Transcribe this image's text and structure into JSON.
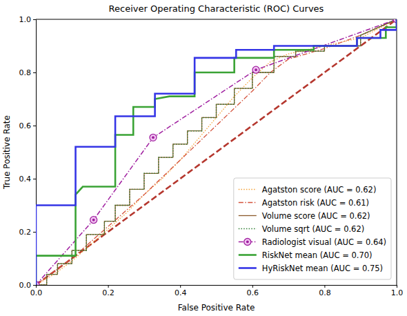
{
  "chart_data": {
    "type": "line",
    "title": "Receiver Operating Characteristic (ROC) Curves",
    "x_label": "False Positive Rate",
    "y_label": "True Positive Rate",
    "xlim": [
      0,
      1
    ],
    "ylim": [
      0,
      1
    ],
    "xticks": [
      {
        "value": 0,
        "label": "0.0"
      },
      0.2,
      0.4,
      0.6,
      0.8,
      {
        "value": 1,
        "label": "1.0"
      }
    ],
    "yticks": [
      {
        "value": 0,
        "label": "0.0"
      },
      0.2,
      0.4,
      0.6,
      0.8,
      {
        "value": 1,
        "label": "1.0"
      }
    ],
    "legend": "lower right",
    "grid": false,
    "series": [
      {
        "color": "#b5372e",
        "line_style": "dashed",
        "x": [
          0,
          1
        ],
        "values": [
          0,
          1
        ]
      },
      {
        "name": "Agatston score (AUC = 0.62)",
        "color": "#f5a033",
        "line_style": "dotted",
        "x": [
          0,
          0.05,
          0.1,
          0.15,
          0.2,
          0.25,
          0.3,
          0.35,
          0.4,
          0.45,
          0.5,
          0.55,
          0.6,
          0.65,
          0.7,
          0.8,
          0.9,
          1
        ],
        "values": [
          0,
          0.04,
          0.09,
          0.15,
          0.21,
          0.27,
          0.34,
          0.4,
          0.47,
          0.55,
          0.63,
          0.71,
          0.78,
          0.84,
          0.87,
          0.9,
          0.93,
          1
        ]
      },
      {
        "name": "Agatston risk (AUC = 0.61)",
        "color": "#d4513a",
        "line_style": "dashdot",
        "x": [
          0,
          0.1,
          0.2,
          0.3,
          0.4,
          0.5,
          0.6,
          0.65,
          0.7,
          0.8,
          0.9,
          1
        ],
        "values": [
          0,
          0.1,
          0.22,
          0.34,
          0.47,
          0.6,
          0.73,
          0.8,
          0.85,
          0.89,
          0.94,
          1
        ]
      },
      {
        "name": "Volume score (AUC = 0.62)",
        "color": "#8b5a2b",
        "line_style": "solid",
        "x": [
          0,
          0.03,
          0.03,
          0.06,
          0.06,
          0.1,
          0.1,
          0.14,
          0.14,
          0.19,
          0.19,
          0.22,
          0.22,
          0.26,
          0.26,
          0.3,
          0.3,
          0.34,
          0.34,
          0.38,
          0.38,
          0.42,
          0.42,
          0.46,
          0.46,
          0.5,
          0.5,
          0.55,
          0.55,
          0.6,
          0.6,
          0.66,
          0.66,
          0.72,
          0.72,
          0.8,
          0.8,
          0.9,
          0.9,
          1
        ],
        "values": [
          0,
          0,
          0.04,
          0.04,
          0.08,
          0.08,
          0.13,
          0.13,
          0.19,
          0.19,
          0.24,
          0.24,
          0.3,
          0.3,
          0.36,
          0.36,
          0.42,
          0.42,
          0.48,
          0.48,
          0.53,
          0.53,
          0.58,
          0.58,
          0.63,
          0.63,
          0.68,
          0.68,
          0.74,
          0.74,
          0.8,
          0.8,
          0.86,
          0.86,
          0.88,
          0.88,
          0.9,
          0.9,
          0.94,
          1
        ]
      },
      {
        "name": "Volume sqrt (AUC = 0.62)",
        "color": "#2e7d32",
        "line_style": "dotted",
        "x": [
          0,
          0.03,
          0.03,
          0.06,
          0.06,
          0.1,
          0.1,
          0.14,
          0.14,
          0.19,
          0.19,
          0.22,
          0.22,
          0.26,
          0.26,
          0.3,
          0.3,
          0.34,
          0.34,
          0.38,
          0.38,
          0.42,
          0.42,
          0.46,
          0.46,
          0.5,
          0.5,
          0.55,
          0.55,
          0.6,
          0.6,
          0.66,
          0.66,
          0.72,
          0.72,
          0.8,
          0.8,
          0.9,
          0.9,
          1
        ],
        "values": [
          0,
          0,
          0.04,
          0.04,
          0.08,
          0.08,
          0.13,
          0.13,
          0.19,
          0.19,
          0.24,
          0.24,
          0.3,
          0.3,
          0.36,
          0.36,
          0.42,
          0.42,
          0.48,
          0.48,
          0.53,
          0.53,
          0.58,
          0.58,
          0.63,
          0.63,
          0.68,
          0.68,
          0.74,
          0.74,
          0.8,
          0.8,
          0.86,
          0.86,
          0.88,
          0.88,
          0.9,
          0.9,
          0.94,
          1
        ]
      },
      {
        "name": "Radiologist visual (AUC = 0.64)",
        "color": "#a020a0",
        "line_style": "dashdot",
        "marker": "circle",
        "x": [
          0,
          0.16,
          0.325,
          0.61,
          1
        ],
        "values": [
          0,
          0.245,
          0.555,
          0.81,
          1
        ]
      },
      {
        "name": "RiskNet mean (AUC = 0.70)",
        "color": "#3aa335",
        "line_style": "solid",
        "x": [
          0,
          0,
          0.11,
          0.11,
          0.13,
          0.22,
          0.22,
          0.27,
          0.27,
          0.33,
          0.33,
          0.37,
          0.44,
          0.44,
          0.55,
          0.55,
          0.66,
          0.66,
          0.77,
          0.77,
          0.89,
          0.89,
          0.97,
          0.97,
          1,
          1
        ],
        "values": [
          0,
          0.11,
          0.11,
          0.34,
          0.37,
          0.37,
          0.565,
          0.565,
          0.67,
          0.67,
          0.7,
          0.71,
          0.71,
          0.8,
          0.8,
          0.855,
          0.855,
          0.885,
          0.885,
          0.9,
          0.9,
          0.93,
          0.93,
          0.97,
          0.97,
          1
        ]
      },
      {
        "name": "HyRiskNet mean (AUC = 0.75)",
        "color": "#3535e6",
        "line_style": "solid",
        "x": [
          0,
          0,
          0.11,
          0.11,
          0.22,
          0.22,
          0.33,
          0.33,
          0.44,
          0.44,
          0.555,
          0.555,
          0.66,
          0.66,
          0.78,
          0.78,
          0.89,
          0.89,
          0.955,
          0.955,
          1,
          1
        ],
        "values": [
          0,
          0.3,
          0.3,
          0.52,
          0.52,
          0.635,
          0.635,
          0.72,
          0.72,
          0.855,
          0.855,
          0.885,
          0.885,
          0.9,
          0.9,
          0.9,
          0.9,
          0.93,
          0.93,
          0.96,
          0.96,
          1
        ]
      }
    ]
  }
}
